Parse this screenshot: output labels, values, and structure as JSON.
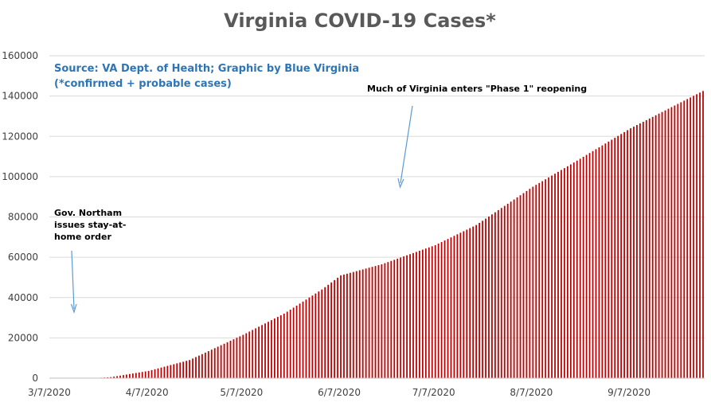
{
  "chart_data": {
    "type": "bar",
    "title": "Virginia COVID-19 Cases*",
    "source_line1": "Source: VA Dept. of Health; Graphic by Blue Virginia",
    "source_line2": "(*confirmed + probable cases)",
    "x_start": "2020-03-07",
    "x_end": "2020-09-30",
    "ylim": [
      0,
      160000
    ],
    "y_ticks": [
      0,
      20000,
      40000,
      60000,
      80000,
      100000,
      120000,
      140000,
      160000
    ],
    "x_ticks": [
      "3/7/2020",
      "4/7/2020",
      "5/7/2020",
      "6/7/2020",
      "7/7/2020",
      "8/7/2020",
      "9/7/2020"
    ],
    "x_tick_dates": [
      "2020-03-07",
      "2020-04-07",
      "2020-05-07",
      "2020-06-07",
      "2020-07-07",
      "2020-08-07",
      "2020-09-07"
    ],
    "bar_color": "#c00000",
    "anchors": [
      {
        "date": "2020-03-07",
        "value": 0
      },
      {
        "date": "2020-03-20",
        "value": 0
      },
      {
        "date": "2020-03-26",
        "value": 500
      },
      {
        "date": "2020-04-07",
        "value": 3600
      },
      {
        "date": "2020-04-20",
        "value": 9000
      },
      {
        "date": "2020-05-07",
        "value": 21500
      },
      {
        "date": "2020-05-20",
        "value": 32000
      },
      {
        "date": "2020-06-01",
        "value": 44000
      },
      {
        "date": "2020-06-07",
        "value": 51000
      },
      {
        "date": "2020-06-20",
        "value": 56500
      },
      {
        "date": "2020-07-07",
        "value": 66000
      },
      {
        "date": "2020-07-20",
        "value": 76000
      },
      {
        "date": "2020-08-07",
        "value": 95000
      },
      {
        "date": "2020-08-20",
        "value": 107000
      },
      {
        "date": "2020-09-07",
        "value": 124000
      },
      {
        "date": "2020-09-20",
        "value": 134500
      },
      {
        "date": "2020-09-30",
        "value": 142500
      }
    ],
    "annotations": [
      {
        "lines": [
          "Gov. Northam",
          "issues stay-at-",
          "home order"
        ]
      },
      {
        "lines": [
          "Much of Virginia enters \"Phase 1\" reopening"
        ]
      }
    ]
  }
}
